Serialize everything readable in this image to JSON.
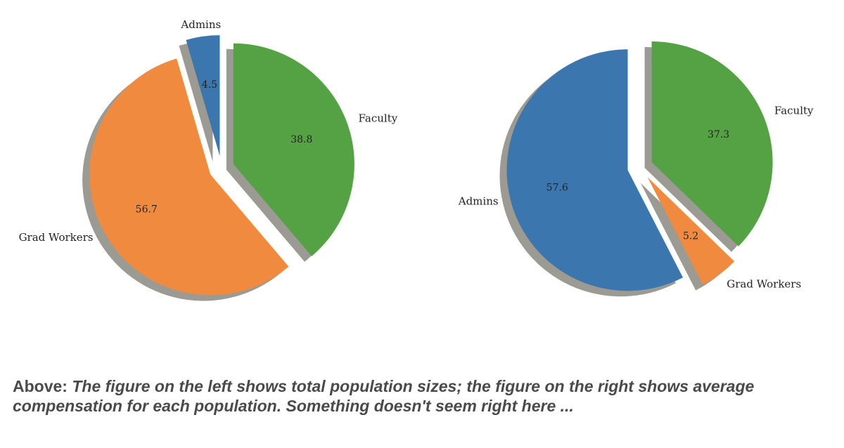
{
  "chart_data": [
    {
      "type": "pie",
      "title": "",
      "start_angle_deg": 90,
      "slices": [
        {
          "name": "Faculty",
          "value": 38.8,
          "label": "38.8",
          "color": "#55a244",
          "explode": true
        },
        {
          "name": "Grad Workers",
          "value": 56.7,
          "label": "56.7",
          "color": "#ef8a3e",
          "explode": true
        },
        {
          "name": "Admins",
          "value": 4.5,
          "label": "4.5",
          "color": "#3b77ae",
          "explode": true
        }
      ],
      "shadow": true
    },
    {
      "type": "pie",
      "title": "",
      "start_angle_deg": 90,
      "slices": [
        {
          "name": "Faculty",
          "value": 37.3,
          "label": "37.3",
          "color": "#55a244",
          "explode": true
        },
        {
          "name": "Grad Workers",
          "value": 5.2,
          "label": "5.2",
          "color": "#ef8a3e",
          "explode": true
        },
        {
          "name": "Admins",
          "value": 57.6,
          "label": "57.6",
          "color": "#3b77ae",
          "explode": true
        }
      ],
      "shadow": true
    }
  ],
  "caption": {
    "lead": "Above",
    "separator": ": ",
    "body": "The figure on the left shows total population sizes; the figure on the right shows average compensation for each population. Something doesn't seem right here ..."
  }
}
